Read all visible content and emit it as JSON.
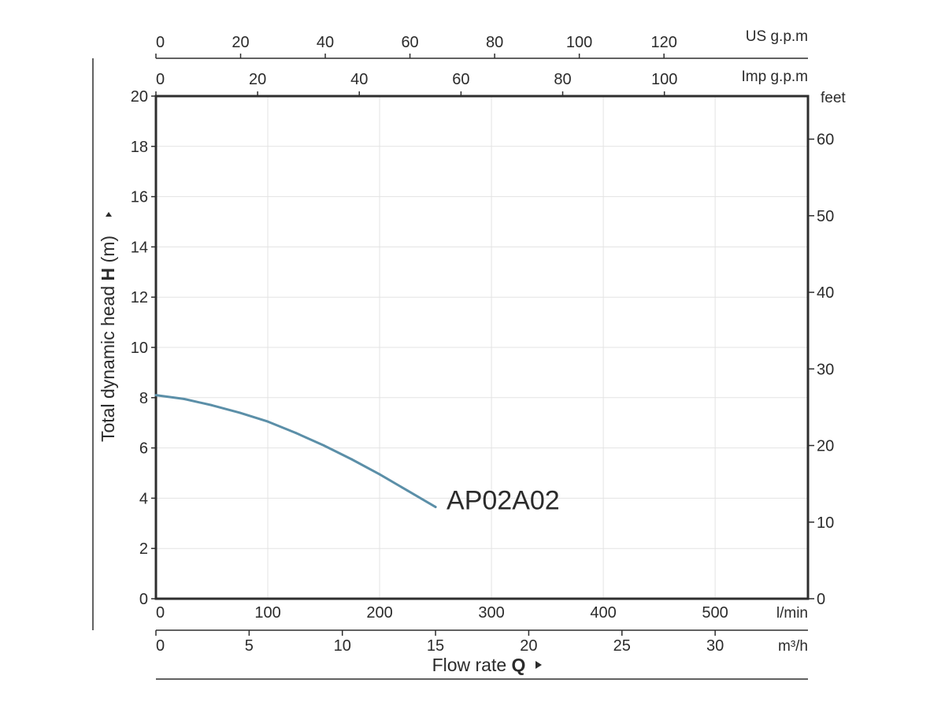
{
  "chart_data": {
    "type": "line",
    "title": "",
    "ylabel_prefix": "Total dynamic head ",
    "ylabel_bold": "H",
    "ylabel_suffix": " (m)",
    "xlabel_prefix": "Flow rate ",
    "xlabel_bold": "Q",
    "ylim": [
      0,
      20
    ],
    "xlim": [
      0,
      583
    ],
    "grid": true,
    "axes": {
      "left": {
        "unit": "m",
        "ticks": [
          0,
          2,
          4,
          6,
          8,
          10,
          12,
          14,
          16,
          18,
          20
        ]
      },
      "right": {
        "unit": "feet",
        "ticks": [
          0,
          10,
          20,
          30,
          40,
          50,
          60
        ]
      },
      "bottom_primary": {
        "unit": "l/min",
        "ticks": [
          0,
          100,
          200,
          300,
          400,
          500
        ]
      },
      "bottom_secondary": {
        "unit": "m³/h",
        "ticks": [
          0,
          5,
          10,
          15,
          20,
          25,
          30
        ]
      },
      "top_upper": {
        "unit": "US g.p.m",
        "ticks": [
          0,
          20,
          40,
          60,
          80,
          100,
          120
        ]
      },
      "top_lower": {
        "unit": "Imp g.p.m",
        "ticks": [
          0,
          20,
          40,
          60,
          80,
          100
        ]
      }
    },
    "series": [
      {
        "name": "AP02A02",
        "color": "#5b8fa8",
        "x": [
          0,
          25,
          50,
          75,
          100,
          125,
          150,
          175,
          200,
          225,
          250
        ],
        "y": [
          8.1,
          7.95,
          7.7,
          7.4,
          7.05,
          6.6,
          6.1,
          5.55,
          4.95,
          4.3,
          3.65
        ]
      }
    ]
  }
}
